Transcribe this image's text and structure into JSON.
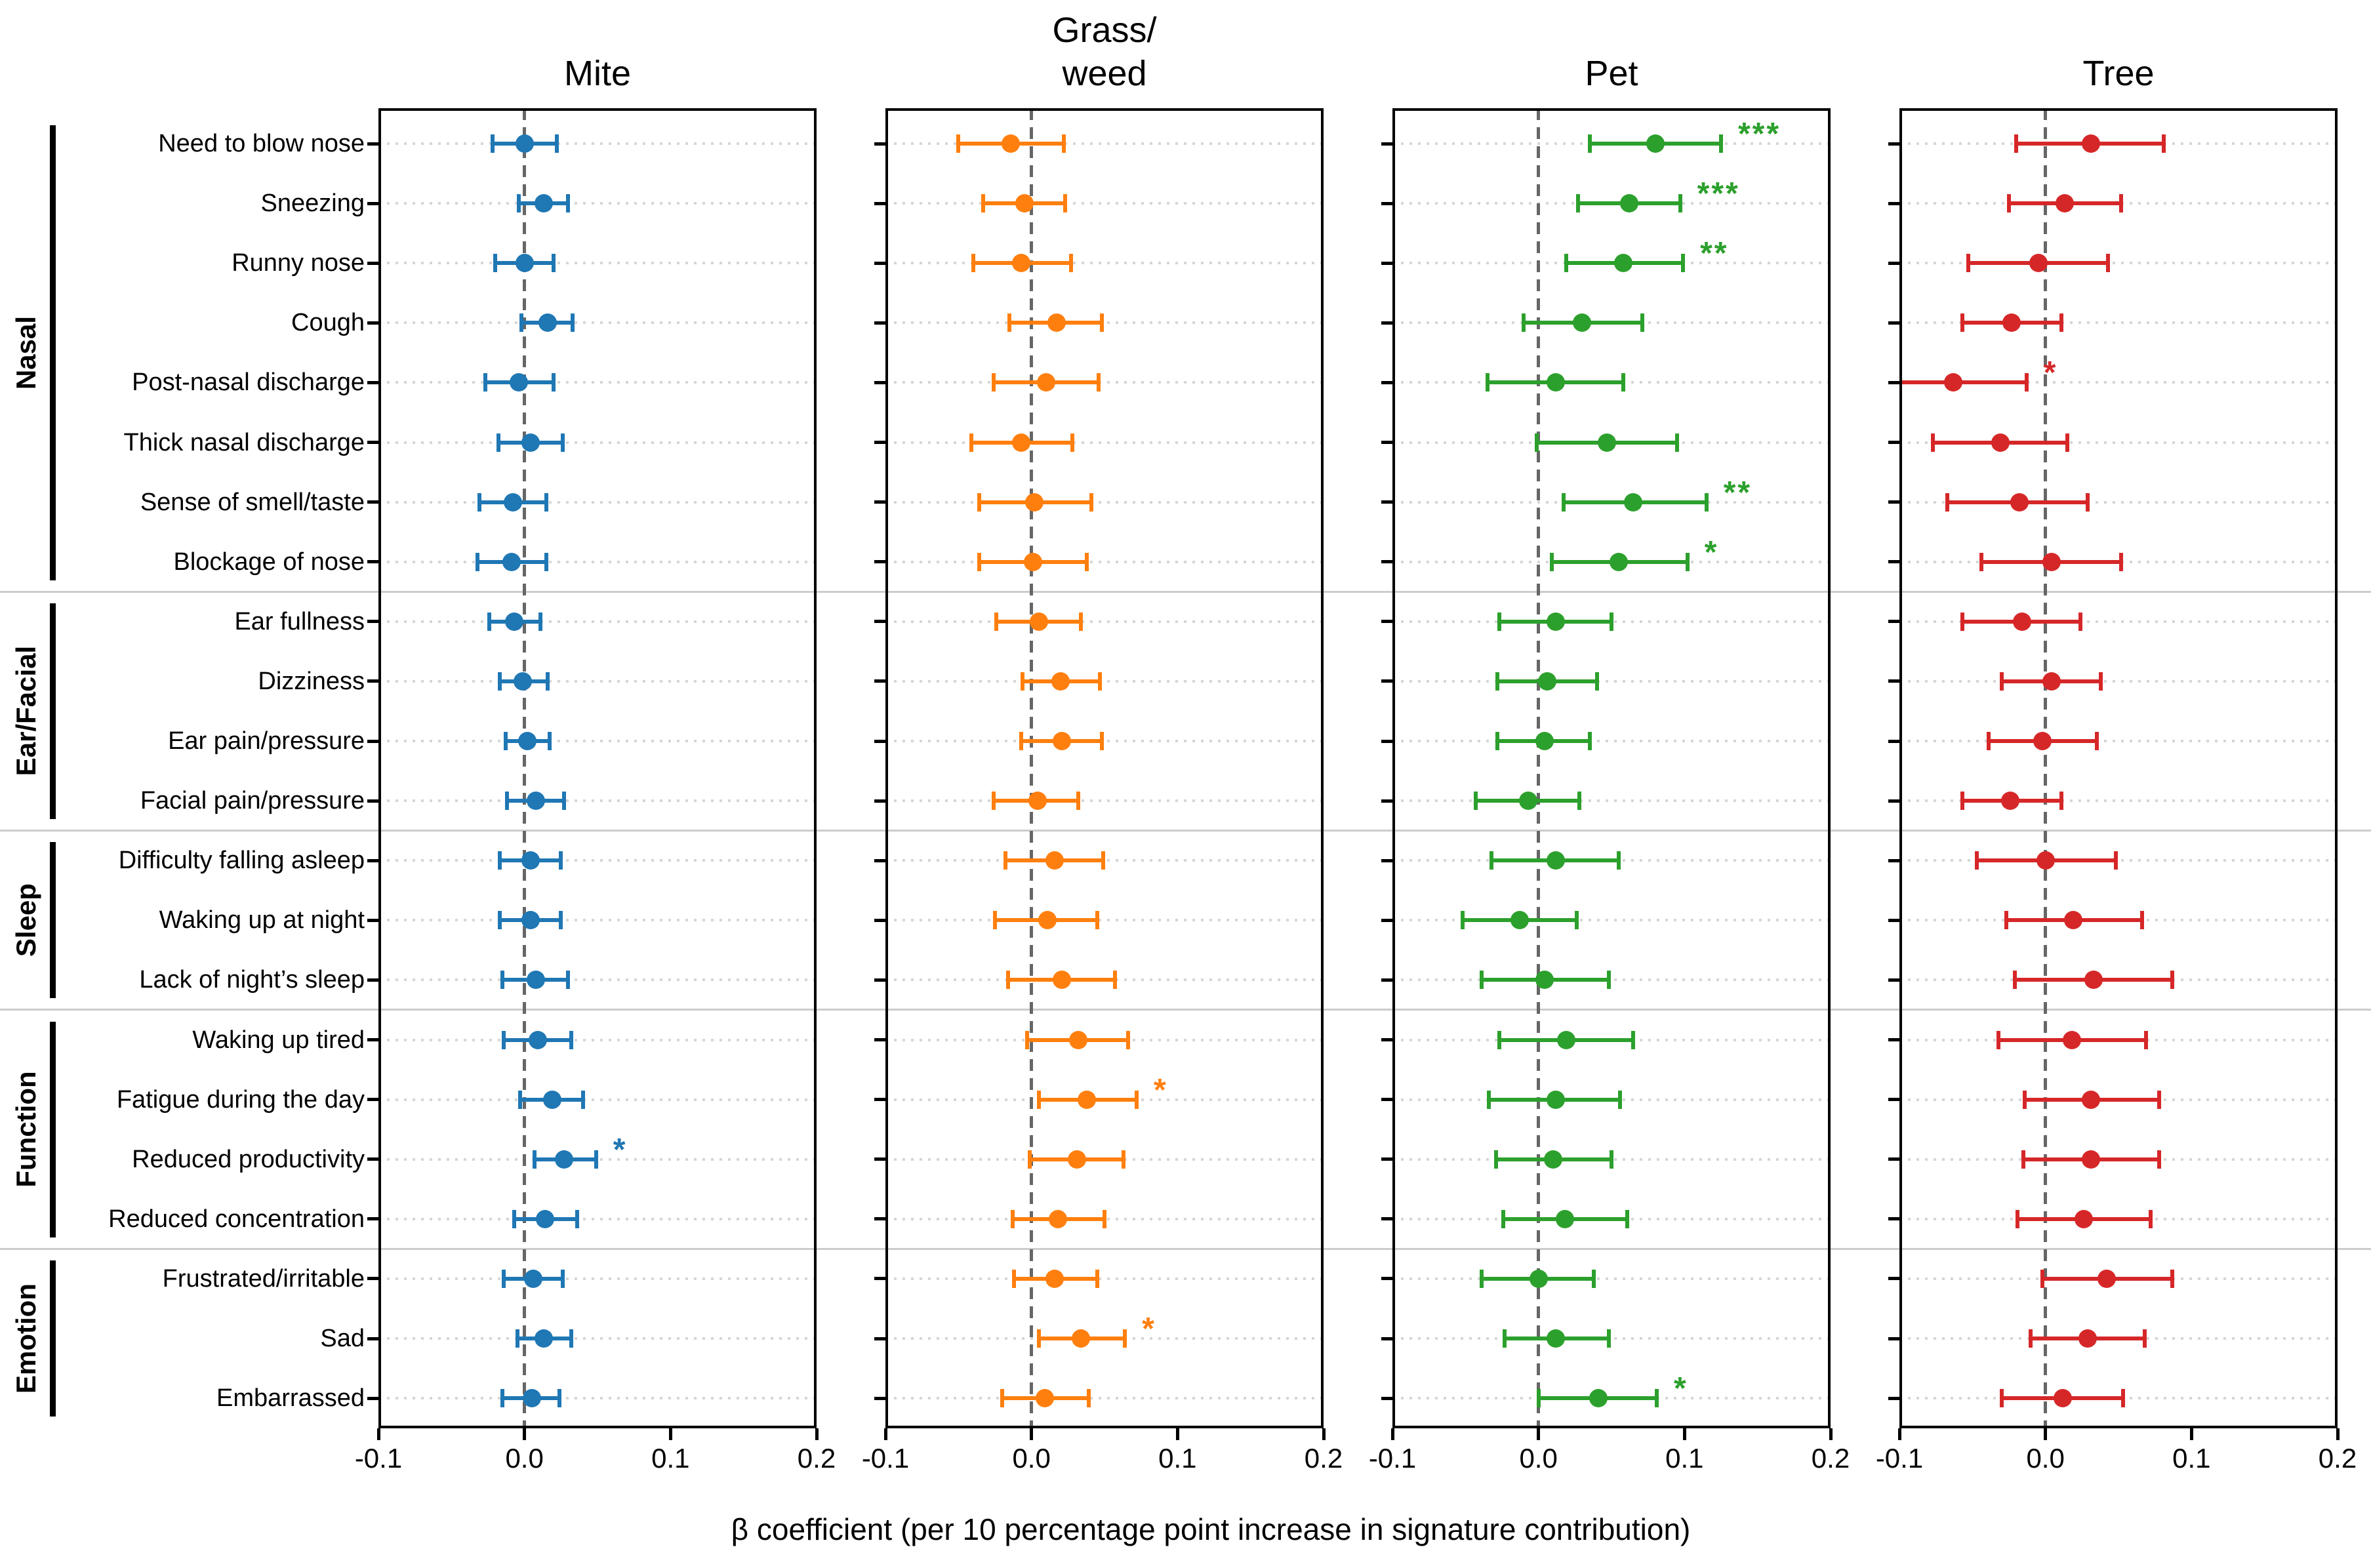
{
  "figure": {
    "xlabel": "β coefficient (per 10 percentage point increase in signature contribution)"
  },
  "chart_data": {
    "type": "scatter",
    "subtype": "forest-plot-with-error-bars",
    "xlabel": "β coefficient (per 10 percentage point increase in signature contribution)",
    "xlim": [
      -0.1,
      0.2
    ],
    "xticks": [
      -0.1,
      0.0,
      0.1,
      0.2
    ],
    "xtick_labels": [
      "-0.1",
      "0.0",
      "0.1",
      "0.2"
    ],
    "zero_line": 0.0,
    "grid": "dotted-row-lines",
    "categories": [
      "Need to blow nose",
      "Sneezing",
      "Runny nose",
      "Cough",
      "Post-nasal discharge",
      "Thick nasal discharge",
      "Sense of smell/taste",
      "Blockage of nose",
      "Ear fullness",
      "Dizziness",
      "Ear pain/pressure",
      "Facial pain/pressure",
      "Difficulty falling asleep",
      "Waking up at night",
      "Lack of night’s sleep",
      "Waking up tired",
      "Fatigue during the day",
      "Reduced productivity",
      "Reduced concentration",
      "Frustrated/irritable",
      "Sad",
      "Embarrassed"
    ],
    "row_groups": [
      {
        "label": "Nasal",
        "start": 0,
        "end": 7
      },
      {
        "label": "Ear/Facial",
        "start": 8,
        "end": 11
      },
      {
        "label": "Sleep",
        "start": 12,
        "end": 14
      },
      {
        "label": "Function",
        "start": 15,
        "end": 18
      },
      {
        "label": "Emotion",
        "start": 19,
        "end": 21
      }
    ],
    "series": [
      {
        "name": "Mite",
        "title": "Mite",
        "color": "#1f77b4",
        "points": [
          {
            "v": 0.0,
            "lo": -0.022,
            "hi": 0.022,
            "sig": ""
          },
          {
            "v": 0.013,
            "lo": -0.004,
            "hi": 0.03,
            "sig": ""
          },
          {
            "v": 0.0,
            "lo": -0.02,
            "hi": 0.02,
            "sig": ""
          },
          {
            "v": 0.016,
            "lo": -0.002,
            "hi": 0.033,
            "sig": ""
          },
          {
            "v": -0.004,
            "lo": -0.027,
            "hi": 0.02,
            "sig": ""
          },
          {
            "v": 0.004,
            "lo": -0.018,
            "hi": 0.026,
            "sig": ""
          },
          {
            "v": -0.008,
            "lo": -0.031,
            "hi": 0.015,
            "sig": ""
          },
          {
            "v": -0.009,
            "lo": -0.032,
            "hi": 0.015,
            "sig": ""
          },
          {
            "v": -0.007,
            "lo": -0.024,
            "hi": 0.011,
            "sig": ""
          },
          {
            "v": -0.001,
            "lo": -0.017,
            "hi": 0.016,
            "sig": ""
          },
          {
            "v": 0.002,
            "lo": -0.013,
            "hi": 0.017,
            "sig": ""
          },
          {
            "v": 0.008,
            "lo": -0.012,
            "hi": 0.027,
            "sig": ""
          },
          {
            "v": 0.004,
            "lo": -0.017,
            "hi": 0.025,
            "sig": ""
          },
          {
            "v": 0.004,
            "lo": -0.017,
            "hi": 0.025,
            "sig": ""
          },
          {
            "v": 0.008,
            "lo": -0.015,
            "hi": 0.03,
            "sig": ""
          },
          {
            "v": 0.009,
            "lo": -0.014,
            "hi": 0.032,
            "sig": ""
          },
          {
            "v": 0.019,
            "lo": -0.003,
            "hi": 0.04,
            "sig": ""
          },
          {
            "v": 0.027,
            "lo": 0.007,
            "hi": 0.049,
            "sig": "*"
          },
          {
            "v": 0.014,
            "lo": -0.007,
            "hi": 0.036,
            "sig": ""
          },
          {
            "v": 0.006,
            "lo": -0.014,
            "hi": 0.026,
            "sig": ""
          },
          {
            "v": 0.013,
            "lo": -0.005,
            "hi": 0.032,
            "sig": ""
          },
          {
            "v": 0.005,
            "lo": -0.015,
            "hi": 0.024,
            "sig": ""
          }
        ]
      },
      {
        "name": "Grass/weed",
        "title": "Grass/\nweed",
        "color": "#ff7f0e",
        "points": [
          {
            "v": -0.014,
            "lo": -0.05,
            "hi": 0.022,
            "sig": ""
          },
          {
            "v": -0.005,
            "lo": -0.033,
            "hi": 0.023,
            "sig": ""
          },
          {
            "v": -0.007,
            "lo": -0.04,
            "hi": 0.027,
            "sig": ""
          },
          {
            "v": 0.017,
            "lo": -0.015,
            "hi": 0.048,
            "sig": ""
          },
          {
            "v": 0.01,
            "lo": -0.026,
            "hi": 0.046,
            "sig": ""
          },
          {
            "v": -0.007,
            "lo": -0.041,
            "hi": 0.028,
            "sig": ""
          },
          {
            "v": 0.002,
            "lo": -0.036,
            "hi": 0.041,
            "sig": ""
          },
          {
            "v": 0.001,
            "lo": -0.036,
            "hi": 0.038,
            "sig": ""
          },
          {
            "v": 0.005,
            "lo": -0.024,
            "hi": 0.034,
            "sig": ""
          },
          {
            "v": 0.02,
            "lo": -0.006,
            "hi": 0.047,
            "sig": ""
          },
          {
            "v": 0.021,
            "lo": -0.007,
            "hi": 0.048,
            "sig": ""
          },
          {
            "v": 0.004,
            "lo": -0.026,
            "hi": 0.032,
            "sig": ""
          },
          {
            "v": 0.016,
            "lo": -0.018,
            "hi": 0.049,
            "sig": ""
          },
          {
            "v": 0.011,
            "lo": -0.025,
            "hi": 0.045,
            "sig": ""
          },
          {
            "v": 0.021,
            "lo": -0.016,
            "hi": 0.057,
            "sig": ""
          },
          {
            "v": 0.032,
            "lo": -0.003,
            "hi": 0.066,
            "sig": ""
          },
          {
            "v": 0.038,
            "lo": 0.005,
            "hi": 0.072,
            "sig": "*"
          },
          {
            "v": 0.031,
            "lo": -0.001,
            "hi": 0.063,
            "sig": ""
          },
          {
            "v": 0.018,
            "lo": -0.013,
            "hi": 0.05,
            "sig": ""
          },
          {
            "v": 0.016,
            "lo": -0.012,
            "hi": 0.045,
            "sig": ""
          },
          {
            "v": 0.034,
            "lo": 0.005,
            "hi": 0.064,
            "sig": "*"
          },
          {
            "v": 0.009,
            "lo": -0.02,
            "hi": 0.039,
            "sig": ""
          }
        ]
      },
      {
        "name": "Pet",
        "title": "Pet",
        "color": "#2ca02c",
        "points": [
          {
            "v": 0.08,
            "lo": 0.035,
            "hi": 0.125,
            "sig": "***"
          },
          {
            "v": 0.062,
            "lo": 0.027,
            "hi": 0.097,
            "sig": "***"
          },
          {
            "v": 0.058,
            "lo": 0.019,
            "hi": 0.099,
            "sig": "**"
          },
          {
            "v": 0.03,
            "lo": -0.01,
            "hi": 0.071,
            "sig": ""
          },
          {
            "v": 0.012,
            "lo": -0.035,
            "hi": 0.058,
            "sig": ""
          },
          {
            "v": 0.047,
            "lo": -0.001,
            "hi": 0.095,
            "sig": ""
          },
          {
            "v": 0.065,
            "lo": 0.017,
            "hi": 0.115,
            "sig": "**"
          },
          {
            "v": 0.055,
            "lo": 0.009,
            "hi": 0.102,
            "sig": "*"
          },
          {
            "v": 0.012,
            "lo": -0.027,
            "hi": 0.05,
            "sig": ""
          },
          {
            "v": 0.006,
            "lo": -0.028,
            "hi": 0.04,
            "sig": ""
          },
          {
            "v": 0.004,
            "lo": -0.028,
            "hi": 0.035,
            "sig": ""
          },
          {
            "v": -0.007,
            "lo": -0.043,
            "hi": 0.028,
            "sig": ""
          },
          {
            "v": 0.012,
            "lo": -0.032,
            "hi": 0.055,
            "sig": ""
          },
          {
            "v": -0.013,
            "lo": -0.052,
            "hi": 0.026,
            "sig": ""
          },
          {
            "v": 0.004,
            "lo": -0.039,
            "hi": 0.048,
            "sig": ""
          },
          {
            "v": 0.019,
            "lo": -0.027,
            "hi": 0.065,
            "sig": ""
          },
          {
            "v": 0.012,
            "lo": -0.034,
            "hi": 0.056,
            "sig": ""
          },
          {
            "v": 0.01,
            "lo": -0.029,
            "hi": 0.05,
            "sig": ""
          },
          {
            "v": 0.018,
            "lo": -0.024,
            "hi": 0.061,
            "sig": ""
          },
          {
            "v": 0.0,
            "lo": -0.039,
            "hi": 0.038,
            "sig": ""
          },
          {
            "v": 0.012,
            "lo": -0.023,
            "hi": 0.048,
            "sig": ""
          },
          {
            "v": 0.041,
            "lo": 0.0,
            "hi": 0.081,
            "sig": "*"
          }
        ]
      },
      {
        "name": "Tree",
        "title": "Tree",
        "color": "#d62728",
        "points": [
          {
            "v": 0.031,
            "lo": -0.02,
            "hi": 0.081,
            "sig": ""
          },
          {
            "v": 0.013,
            "lo": -0.025,
            "hi": 0.052,
            "sig": ""
          },
          {
            "v": -0.005,
            "lo": -0.053,
            "hi": 0.043,
            "sig": ""
          },
          {
            "v": -0.023,
            "lo": -0.057,
            "hi": 0.011,
            "sig": ""
          },
          {
            "v": -0.063,
            "lo": -0.11,
            "hi": -0.013,
            "sig": "*"
          },
          {
            "v": -0.031,
            "lo": -0.077,
            "hi": 0.015,
            "sig": ""
          },
          {
            "v": -0.018,
            "lo": -0.067,
            "hi": 0.029,
            "sig": ""
          },
          {
            "v": 0.004,
            "lo": -0.044,
            "hi": 0.052,
            "sig": ""
          },
          {
            "v": -0.016,
            "lo": -0.057,
            "hi": 0.024,
            "sig": ""
          },
          {
            "v": 0.004,
            "lo": -0.03,
            "hi": 0.038,
            "sig": ""
          },
          {
            "v": -0.002,
            "lo": -0.039,
            "hi": 0.035,
            "sig": ""
          },
          {
            "v": -0.024,
            "lo": -0.057,
            "hi": 0.011,
            "sig": ""
          },
          {
            "v": 0.0,
            "lo": -0.047,
            "hi": 0.048,
            "sig": ""
          },
          {
            "v": 0.019,
            "lo": -0.027,
            "hi": 0.066,
            "sig": ""
          },
          {
            "v": 0.033,
            "lo": -0.021,
            "hi": 0.087,
            "sig": ""
          },
          {
            "v": 0.018,
            "lo": -0.032,
            "hi": 0.069,
            "sig": ""
          },
          {
            "v": 0.031,
            "lo": -0.014,
            "hi": 0.078,
            "sig": ""
          },
          {
            "v": 0.031,
            "lo": -0.015,
            "hi": 0.078,
            "sig": ""
          },
          {
            "v": 0.026,
            "lo": -0.019,
            "hi": 0.072,
            "sig": ""
          },
          {
            "v": 0.042,
            "lo": -0.002,
            "hi": 0.087,
            "sig": ""
          },
          {
            "v": 0.029,
            "lo": -0.01,
            "hi": 0.068,
            "sig": ""
          },
          {
            "v": 0.012,
            "lo": -0.03,
            "hi": 0.053,
            "sig": ""
          }
        ]
      }
    ],
    "colors": {
      "mite": "#1f77b4",
      "grass_weed": "#ff7f0e",
      "pet": "#2ca02c",
      "tree": "#d62728",
      "zero_dashed_line": "#666666",
      "row_gridline": "#d6d6d6",
      "group_separator": "#cccccc",
      "axis": "#000000"
    }
  }
}
